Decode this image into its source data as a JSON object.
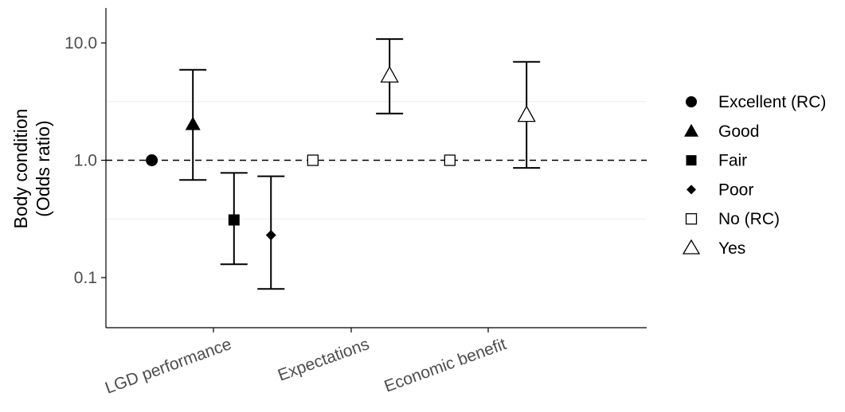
{
  "chart_data": {
    "type": "scatter",
    "subtype": "point-with-error-bars",
    "ylabel_line1": "Body condition",
    "ylabel_line2": "(Odds ratio)",
    "y_scale": "log10",
    "ylim": [
      0.04,
      20
    ],
    "y_ticks": [
      {
        "value": 0.1,
        "label": "0.1"
      },
      {
        "value": 1.0,
        "label": "1.0"
      },
      {
        "value": 10.0,
        "label": "10.0"
      }
    ],
    "y_minor_gridlines": [
      0.316,
      3.16
    ],
    "reference_line": {
      "value": 1.0,
      "style": "dashed"
    },
    "categories": [
      "LGD performance",
      "Expectations",
      "Economic benefit"
    ],
    "series": [
      {
        "name": "Excellent (RC)",
        "shape": "circle",
        "filled": true,
        "points": [
          {
            "category": "LGD performance",
            "offset": -0.45,
            "y": 1.0,
            "lower": null,
            "upper": null
          }
        ]
      },
      {
        "name": "Good",
        "shape": "triangle",
        "filled": true,
        "points": [
          {
            "category": "LGD performance",
            "offset": -0.15,
            "y": 2.0,
            "lower": 0.68,
            "upper": 5.9
          }
        ]
      },
      {
        "name": "Fair",
        "shape": "square",
        "filled": true,
        "points": [
          {
            "category": "LGD performance",
            "offset": 0.15,
            "y": 0.31,
            "lower": 0.13,
            "upper": 0.78
          }
        ]
      },
      {
        "name": "Poor",
        "shape": "diamond",
        "filled": true,
        "points": [
          {
            "category": "LGD performance",
            "offset": 0.42,
            "y": 0.23,
            "lower": 0.08,
            "upper": 0.73
          }
        ]
      },
      {
        "name": "No (RC)",
        "shape": "square",
        "filled": false,
        "points": [
          {
            "category": "Expectations",
            "offset": -0.28,
            "y": 1.0,
            "lower": null,
            "upper": null
          },
          {
            "category": "Economic benefit",
            "offset": -0.28,
            "y": 1.0,
            "lower": null,
            "upper": null
          }
        ]
      },
      {
        "name": "Yes",
        "shape": "triangle",
        "filled": false,
        "points": [
          {
            "category": "Expectations",
            "offset": 0.28,
            "y": 5.2,
            "lower": 2.5,
            "upper": 10.8
          },
          {
            "category": "Economic benefit",
            "offset": 0.28,
            "y": 2.4,
            "lower": 0.86,
            "upper": 6.9
          }
        ]
      }
    ],
    "legend": {
      "position": "right"
    },
    "grid": "minor horizontal only",
    "colors": {
      "marks": "#000000",
      "grid": "#ebebeb",
      "tick_text": "#4d4d4d"
    }
  }
}
